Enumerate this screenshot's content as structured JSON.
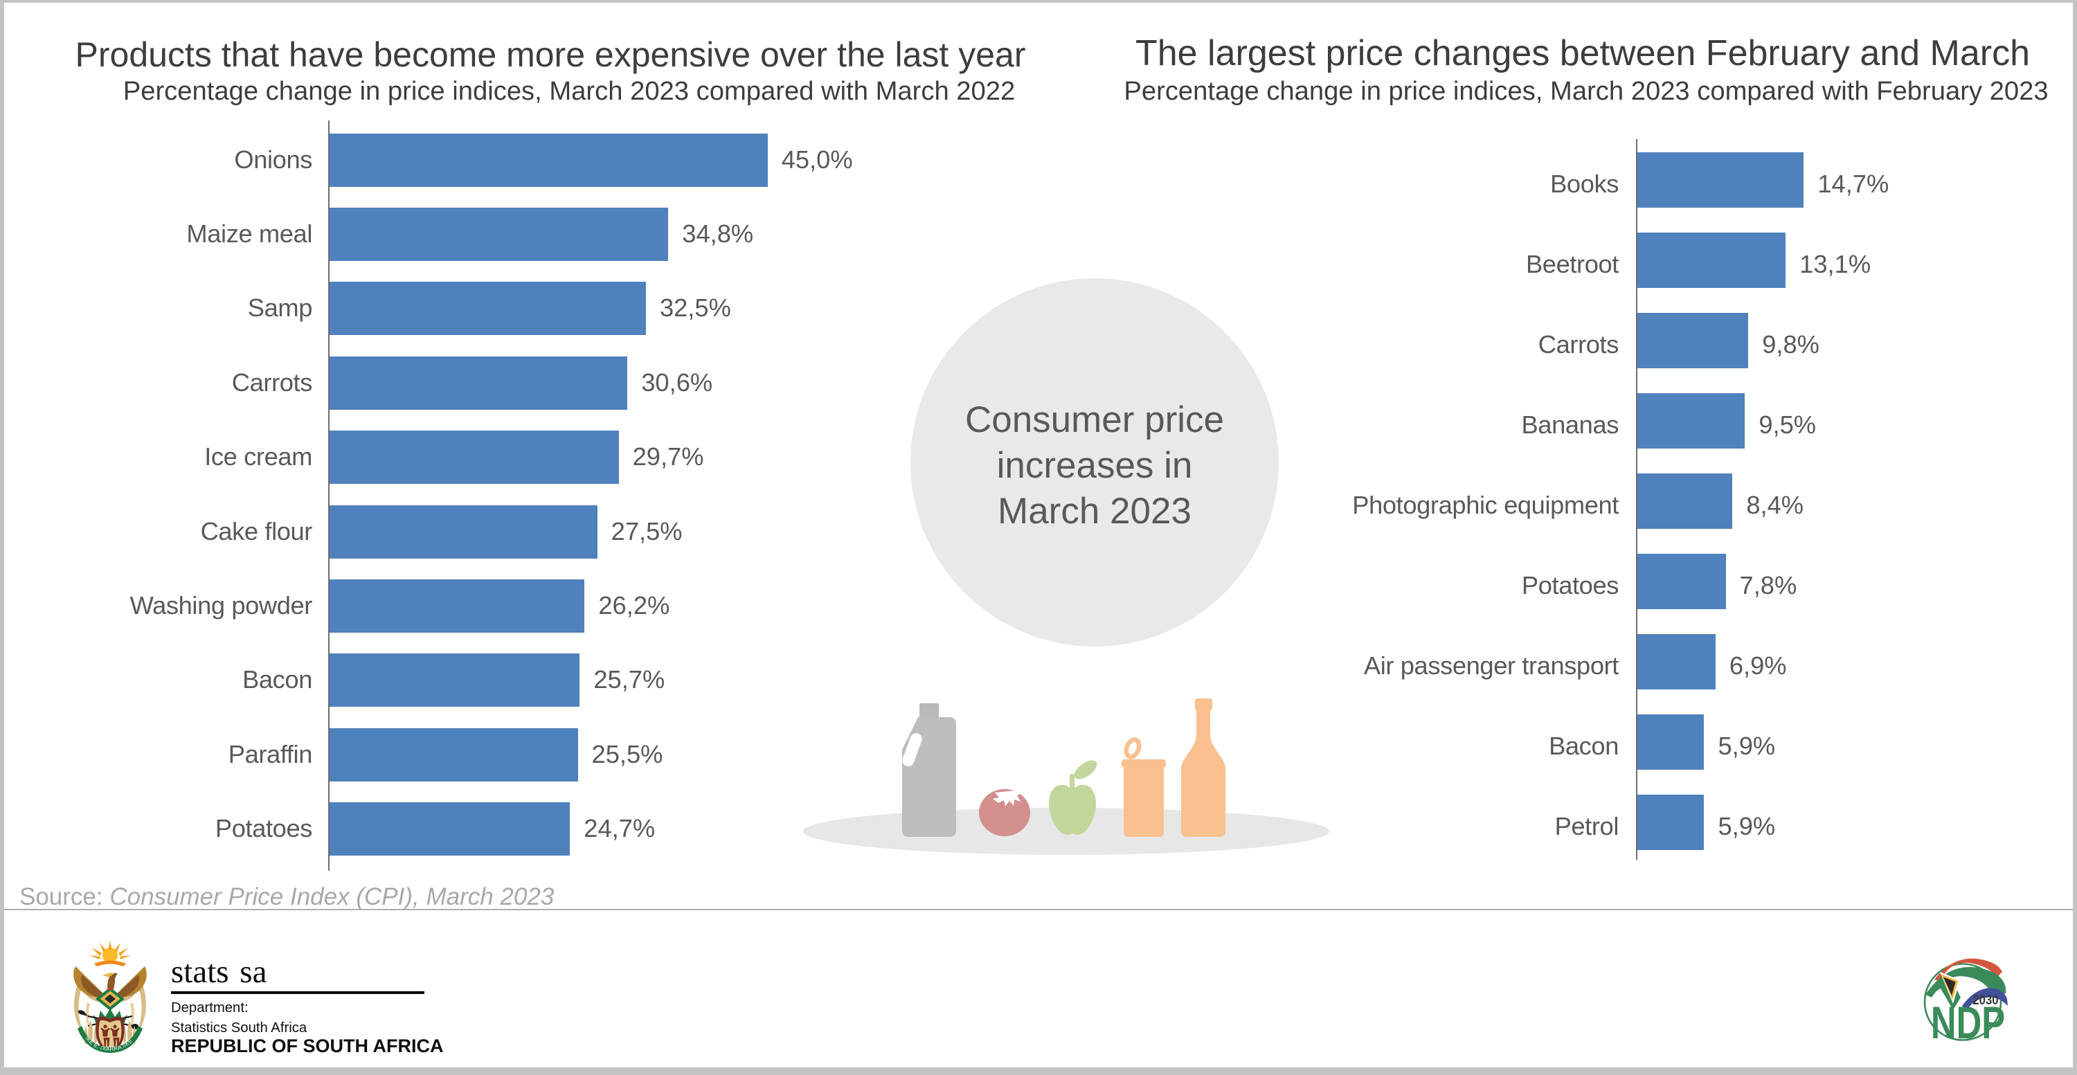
{
  "chart_data": [
    {
      "type": "bar",
      "orientation": "horizontal",
      "title": "Products that have become more expensive over the last year",
      "subtitle": "Percentage change in price indices, March 2023 compared with March 2022",
      "categories": [
        "Onions",
        "Maize meal",
        "Samp",
        "Carrots",
        "Ice cream",
        "Cake flour",
        "Washing powder",
        "Bacon",
        "Paraffin",
        "Potatoes"
      ],
      "values": [
        45.0,
        34.8,
        32.5,
        30.6,
        29.7,
        27.5,
        26.2,
        25.7,
        25.5,
        24.7
      ],
      "value_labels": [
        "45,0%",
        "34,8%",
        "32,5%",
        "30,6%",
        "29,7%",
        "27,5%",
        "26,2%",
        "25,7%",
        "25,5%",
        "24,7%"
      ],
      "xlim": [
        0,
        45
      ],
      "grid": false,
      "legend": "none",
      "bar_color": "#4f81bd"
    },
    {
      "type": "bar",
      "orientation": "horizontal",
      "title": "The largest price changes between February and March",
      "subtitle": "Percentage change in price indices, March 2023 compared with February 2023",
      "categories": [
        "Books",
        "Beetroot",
        "Carrots",
        "Bananas",
        "Photographic equipment",
        "Potatoes",
        "Air passenger transport",
        "Bacon",
        "Petrol"
      ],
      "values": [
        14.7,
        13.1,
        9.8,
        9.5,
        8.4,
        7.8,
        6.9,
        5.9,
        5.9
      ],
      "value_labels": [
        "14,7%",
        "13,1%",
        "9,8%",
        "9,5%",
        "8,4%",
        "7,8%",
        "6,9%",
        "5,9%",
        "5,9%"
      ],
      "xlim": [
        0,
        14.7
      ],
      "grid": false,
      "legend": "none",
      "bar_color": "#4f81bd"
    }
  ],
  "center_badge": {
    "line1": "Consumer price",
    "line2": "increases in",
    "line3": "March 2023",
    "circle_color": "#e9e9e9",
    "icons": [
      "milk-jug",
      "tomato",
      "apple",
      "can",
      "bottle"
    ]
  },
  "source_note": {
    "prefix": "Source: ",
    "text": "Consumer Price Index (CPI), March 2023"
  },
  "footer": {
    "statssa": {
      "name": "stats sa",
      "department_label": "Department:",
      "department_name": "Statistics South Africa",
      "country": "REPUBLIC OF SOUTH AFRICA",
      "motto": "!KE E: /XARRA //KE"
    },
    "ndp": {
      "acronym": "NDP",
      "year": "2030"
    }
  },
  "colors": {
    "bar_blue": "#4f81bd",
    "title_gray": "#3d3d3d",
    "label_gray": "#595959",
    "source_gray": "#a8a8a8",
    "circle_gray": "#e9e9e9",
    "frame_gray": "#c3c3c3",
    "ndp_green": "#3a8a5a",
    "statssa_black": "#0b0b0b"
  }
}
